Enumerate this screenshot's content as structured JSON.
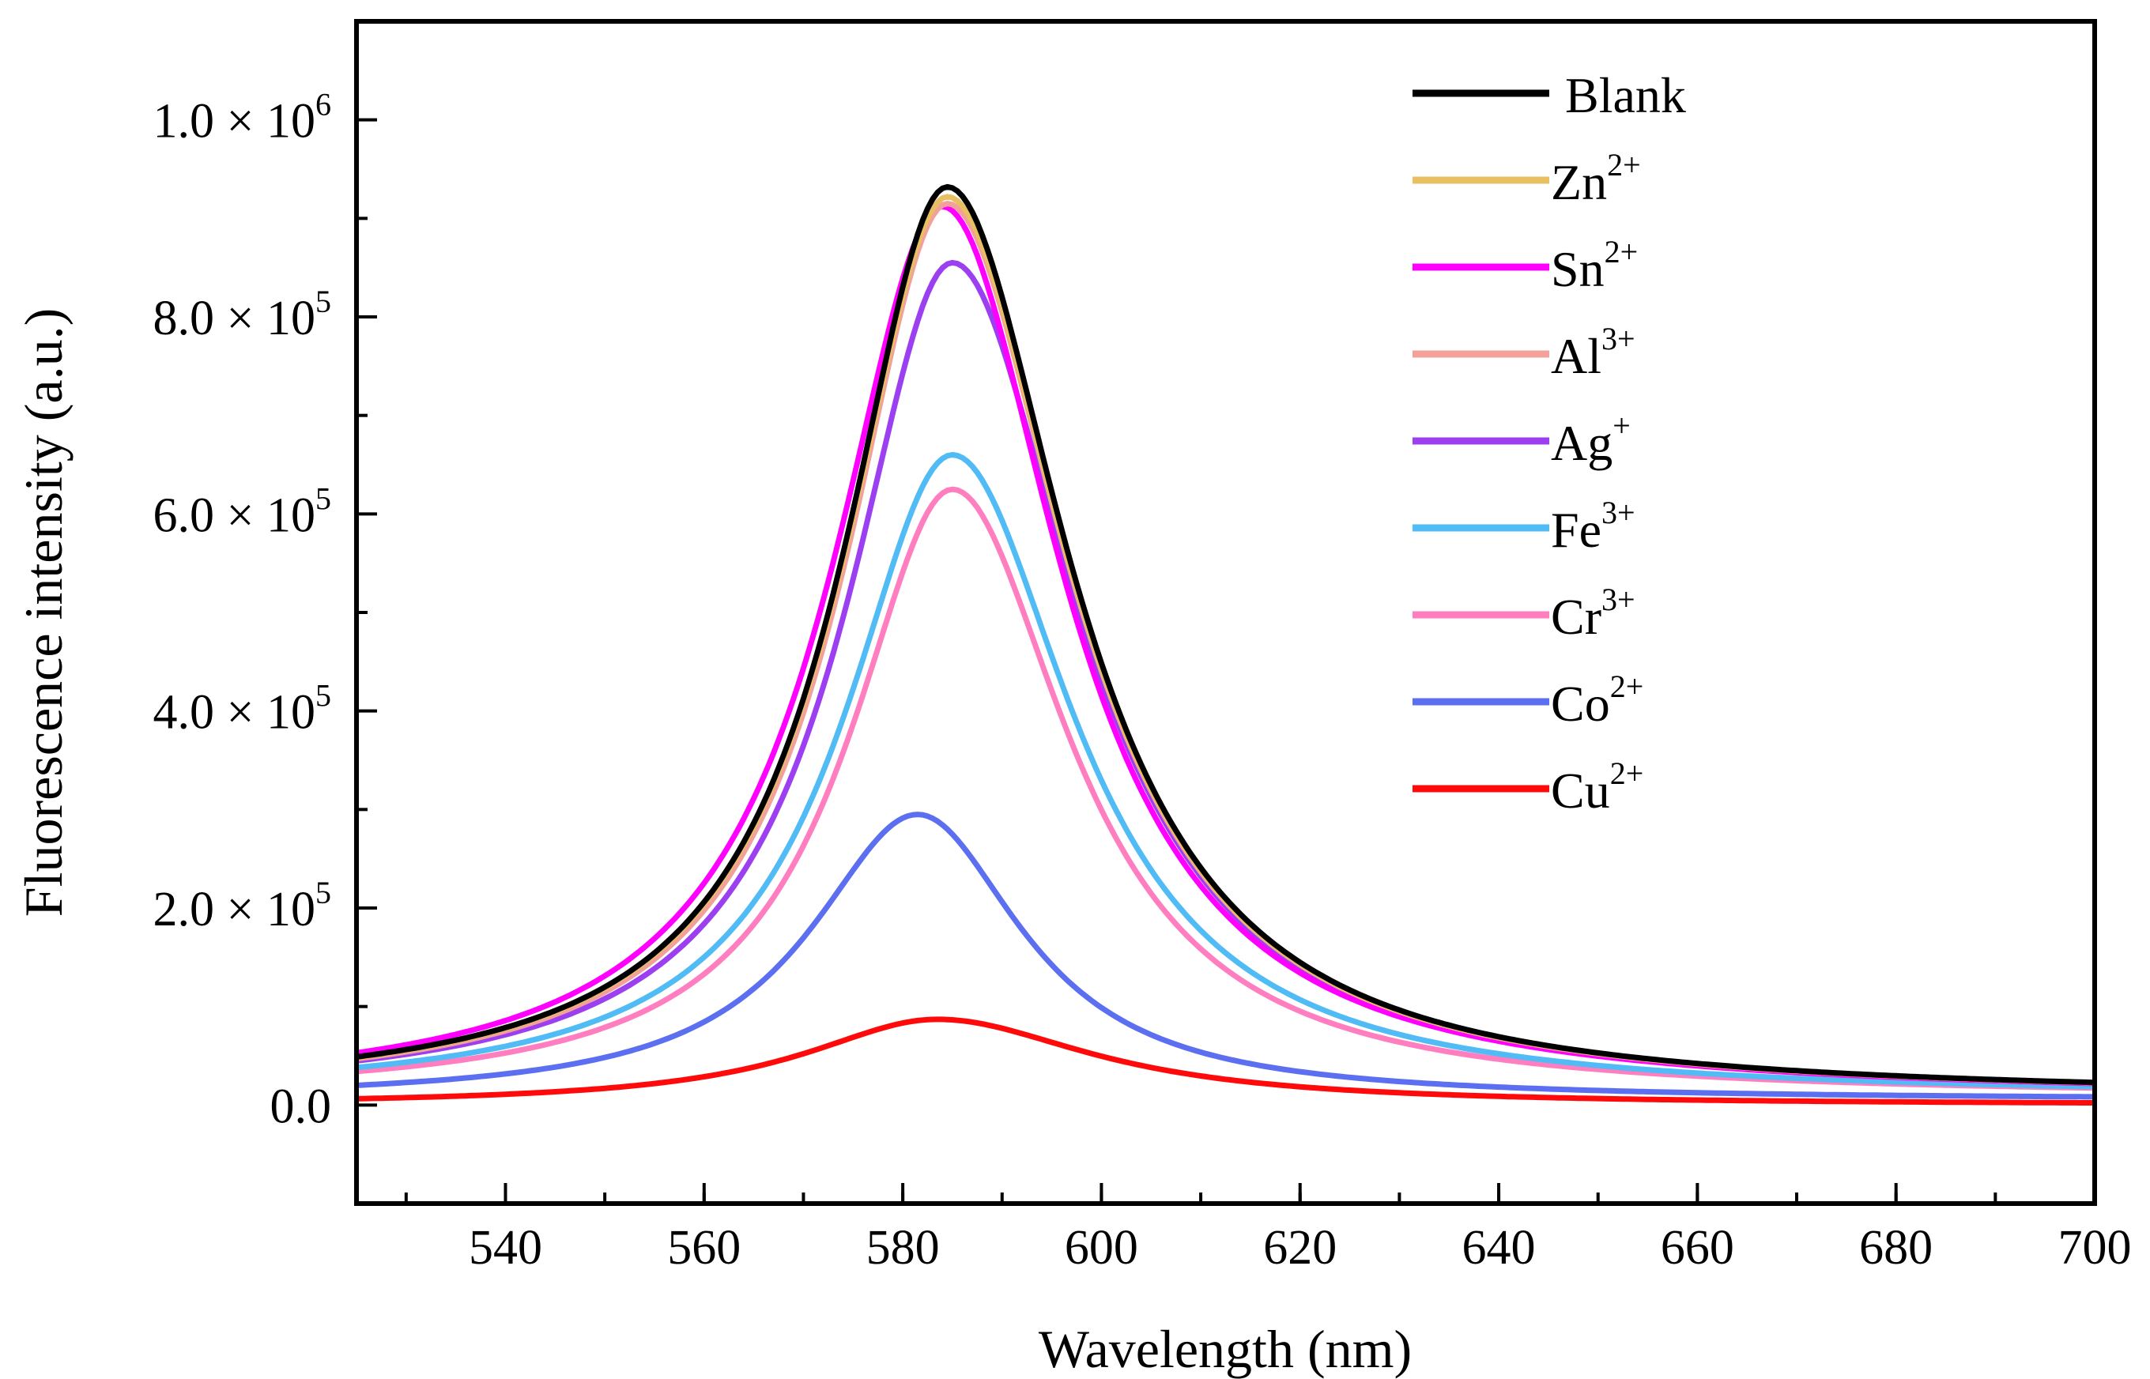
{
  "chart_data": {
    "type": "line",
    "title": "",
    "xlabel": "Wavelength (nm)",
    "ylabel": "Fluorescence intensity (a.u.)",
    "xlim": [
      525,
      700
    ],
    "ylim": [
      -100000,
      1100000
    ],
    "x_ticks": [
      540,
      560,
      580,
      600,
      620,
      640,
      660,
      680,
      700
    ],
    "x_tick_labels": [
      "540",
      "560",
      "580",
      "600",
      "620",
      "640",
      "660",
      "680",
      "700"
    ],
    "y_ticks": [
      {
        "value": 0,
        "mantissa": "0.0",
        "times": "",
        "base": "",
        "exp": ""
      },
      {
        "value": 200000,
        "mantissa": "2.0",
        "times": "×",
        "base": "10",
        "exp": "5"
      },
      {
        "value": 400000,
        "mantissa": "4.0",
        "times": "×",
        "base": "10",
        "exp": "5"
      },
      {
        "value": 600000,
        "mantissa": "6.0",
        "times": "×",
        "base": "10",
        "exp": "5"
      },
      {
        "value": 800000,
        "mantissa": "8.0",
        "times": "×",
        "base": "10",
        "exp": "5"
      },
      {
        "value": 1000000,
        "mantissa": "1.0",
        "times": "×",
        "base": "10",
        "exp": "6"
      }
    ],
    "grid": false,
    "legend_position": "top-right",
    "series": [
      {
        "name": "Blank",
        "base": "Blank",
        "sup": "",
        "color": "#000000",
        "peak_x": 584.5,
        "peak_y": 932000,
        "baseline": 8000,
        "w_left": 12.8,
        "w_right": 14.8
      },
      {
        "name": "Zn2+",
        "base": "Zn",
        "sup": "2+",
        "color": "#E8C063",
        "peak_x": 584.5,
        "peak_y": 922000,
        "baseline": 8000,
        "w_left": 12.8,
        "w_right": 14.8
      },
      {
        "name": "Sn2+",
        "base": "Sn",
        "sup": "2+",
        "color": "#FF00FF",
        "peak_x": 584.0,
        "peak_y": 912000,
        "baseline": 8000,
        "w_left": 13.5,
        "w_right": 14.5
      },
      {
        "name": "Al3+",
        "base": "Al",
        "sup": "3+",
        "color": "#F4A09A",
        "peak_x": 584.5,
        "peak_y": 915000,
        "baseline": 8000,
        "w_left": 12.6,
        "w_right": 14.8
      },
      {
        "name": "Ag+",
        "base": "Ag",
        "sup": "+",
        "color": "#9B3FF0",
        "peak_x": 585.0,
        "peak_y": 855000,
        "baseline": 8000,
        "w_left": 12.8,
        "w_right": 15.0
      },
      {
        "name": "Fe3+",
        "base": "Fe",
        "sup": "3+",
        "color": "#50BBF5",
        "peak_x": 585.0,
        "peak_y": 660000,
        "baseline": 8000,
        "w_left": 13.2,
        "w_right": 14.8
      },
      {
        "name": "Cr3+",
        "base": "Cr",
        "sup": "3+",
        "color": "#FF7EC0",
        "peak_x": 585.0,
        "peak_y": 625000,
        "baseline": 8000,
        "w_left": 12.6,
        "w_right": 14.2
      },
      {
        "name": "Co2+",
        "base": "Co",
        "sup": "2+",
        "color": "#5B6FF0",
        "peak_x": 581.5,
        "peak_y": 295000,
        "baseline": 5000,
        "w_left": 13.2,
        "w_right": 12.8
      },
      {
        "name": "Cu2+",
        "base": "Cu",
        "sup": "2+",
        "color": "#FF0A0A",
        "peak_x": 583.5,
        "peak_y": 87000,
        "baseline": 0,
        "w_left": 16.5,
        "w_right": 19.0
      }
    ]
  }
}
